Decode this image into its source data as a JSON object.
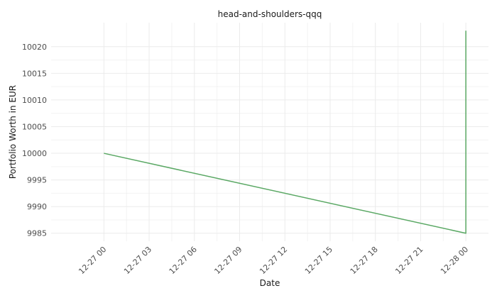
{
  "chart_data": {
    "type": "line",
    "title": "head-and-shoulders-qqq",
    "xlabel": "Date",
    "ylabel": "Portfolio Worth in EUR",
    "x_tick_labels": [
      "12-27 00",
      "12-27 03",
      "12-27 06",
      "12-27 09",
      "12-27 12",
      "12-27 15",
      "12-27 18",
      "12-27 21",
      "12-28 00"
    ],
    "x_ticks": [
      "2023-12-27T00:00",
      "2023-12-27T03:00",
      "2023-12-27T06:00",
      "2023-12-27T09:00",
      "2023-12-27T12:00",
      "2023-12-27T15:00",
      "2023-12-27T18:00",
      "2023-12-27T21:00",
      "2023-12-28T00:00"
    ],
    "y_ticks": [
      9985,
      9990,
      9995,
      10000,
      10005,
      10010,
      10015,
      10020
    ],
    "xlim": [
      "2023-12-26T20:30",
      "2023-12-28T01:30"
    ],
    "ylim": [
      9983.5,
      10024.5
    ],
    "grid": true,
    "series": [
      {
        "color": "#5aa864",
        "points": [
          {
            "x": "2023-12-27T00:00",
            "y": 10000
          },
          {
            "x": "2023-12-28T00:00",
            "y": 9985
          },
          {
            "x": "2023-12-28T00:00",
            "y": 10023
          }
        ]
      }
    ]
  }
}
